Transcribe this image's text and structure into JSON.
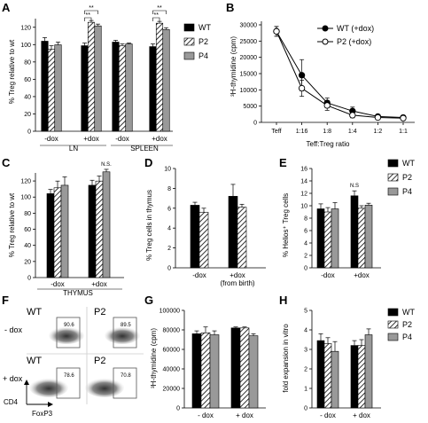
{
  "colors": {
    "wt": "#000000",
    "p2": "#ffffff",
    "p4": "#999999",
    "axis": "#000000",
    "facs": "#555555"
  },
  "legend": {
    "wt": "WT",
    "p2": "P2",
    "p4": "P4",
    "line_wt": "WT (+dox)",
    "line_p2": "P2 (+dox)"
  },
  "panels": {
    "A": {
      "letter": "A",
      "ylabel": "% Treg relative to wt",
      "yticks": [
        "0",
        "20",
        "40",
        "60",
        "80",
        "100",
        "120"
      ],
      "groups": [
        "-dox",
        "+dox",
        "-dox",
        "+dox"
      ],
      "tissues": [
        "LN",
        "SPLEEN"
      ],
      "sig": [
        "**",
        "**",
        "**",
        "**"
      ]
    },
    "B": {
      "letter": "B",
      "ylabel": "³H-thymidine (cpm)",
      "xlabel": "Teff:Treg ratio",
      "xticks": [
        "Teff",
        "1:16",
        "1:8",
        "1:4",
        "1:2",
        "1:1"
      ],
      "yticks": [
        "0",
        "5000",
        "10000",
        "15000",
        "20000",
        "25000",
        "30000"
      ]
    },
    "C": {
      "letter": "C",
      "ylabel": "% Treg relative to wt",
      "yticks": [
        "0",
        "20",
        "40",
        "60",
        "80",
        "100",
        "120"
      ],
      "groups": [
        "-dox",
        "+dox"
      ],
      "tissue": "THYMUS",
      "sig": "N.S."
    },
    "D": {
      "letter": "D",
      "ylabel": "% Treg cells in thymus",
      "yticks": [
        "0",
        "2",
        "4",
        "6",
        "8",
        "10"
      ],
      "groups": [
        "-dox",
        "+dox",
        "(from birth)"
      ]
    },
    "E": {
      "letter": "E",
      "ylabel": "% Helios⁺ Treg cells",
      "yticks": [
        "0",
        "2",
        "4",
        "6",
        "8",
        "10",
        "12",
        "14",
        "16"
      ],
      "groups": [
        "-dox",
        "+dox"
      ],
      "sig": "N.S"
    },
    "F": {
      "letter": "F",
      "row_minus": "- dox",
      "row_plus": "+ dox",
      "pct": [
        "90.6",
        "89.5",
        "78.6",
        "70.8"
      ],
      "plot_labels": [
        "WT",
        "P2",
        "WT",
        "P2"
      ],
      "xaxis": "FoxP3",
      "yaxis": "CD4"
    },
    "G": {
      "letter": "G",
      "ylabel": "³H-thymidine (cpm)",
      "yticks": [
        "0",
        "20000",
        "40000",
        "60000",
        "80000",
        "100000"
      ],
      "groups": [
        "- dox",
        "+ dox"
      ]
    },
    "H": {
      "letter": "H",
      "ylabel": "fold expansion in vitro",
      "yticks": [
        "0",
        "1",
        "2",
        "3",
        "4",
        "5"
      ],
      "groups": [
        "- dox",
        "+ dox"
      ]
    }
  },
  "chart_data": [
    {
      "panel": "A",
      "type": "bar",
      "categories": [
        "LN -dox",
        "LN +dox",
        "SPLEEN -dox",
        "SPLEEN +dox"
      ],
      "ylim": [
        0,
        130
      ],
      "series": [
        {
          "name": "WT",
          "values": [
            100,
            95,
            99,
            94
          ],
          "errors": [
            4,
            3,
            2,
            3
          ]
        },
        {
          "name": "P2",
          "values": [
            91,
            121,
            95,
            120
          ],
          "errors": [
            4,
            2,
            2,
            2
          ]
        },
        {
          "name": "P4",
          "values": [
            96,
            117,
            97,
            113
          ],
          "errors": [
            3,
            2,
            1,
            2
          ]
        }
      ]
    },
    {
      "panel": "B",
      "type": "line",
      "x": [
        "Teff",
        "1:16",
        "1:8",
        "1:4",
        "1:2",
        "1:1"
      ],
      "ylim": [
        0,
        30000
      ],
      "series": [
        {
          "name": "WT (+dox)",
          "values": [
            28000,
            14500,
            6000,
            3500,
            1800,
            1500
          ],
          "errors": [
            1500,
            4800,
            1500,
            1200,
            400,
            300
          ]
        },
        {
          "name": "P2 (+dox)",
          "values": [
            28000,
            10500,
            5200,
            2200,
            1500,
            1300
          ],
          "errors": [
            1500,
            2500,
            1500,
            800,
            300,
            200
          ]
        }
      ]
    },
    {
      "panel": "C",
      "type": "bar",
      "categories": [
        "-dox",
        "+dox"
      ],
      "ylim": [
        0,
        130
      ],
      "series": [
        {
          "name": "WT",
          "values": [
            100,
            110
          ],
          "errors": [
            5,
            6
          ]
        },
        {
          "name": "P2",
          "values": [
            107,
            115
          ],
          "errors": [
            8,
            6
          ]
        },
        {
          "name": "P4",
          "values": [
            110,
            126
          ],
          "errors": [
            10,
            3
          ]
        }
      ]
    },
    {
      "panel": "D",
      "type": "bar",
      "categories": [
        "-dox",
        "+dox (from birth)"
      ],
      "ylim": [
        0,
        10
      ],
      "series": [
        {
          "name": "WT",
          "values": [
            6.3,
            7.2
          ],
          "errors": [
            0.3,
            1.2
          ]
        },
        {
          "name": "P2",
          "values": [
            5.6,
            6.1
          ],
          "errors": [
            0.4,
            0.3
          ]
        }
      ]
    },
    {
      "panel": "E",
      "type": "bar",
      "categories": [
        "-dox",
        "+dox"
      ],
      "ylim": [
        0,
        16
      ],
      "series": [
        {
          "name": "WT",
          "values": [
            9.5,
            11.6
          ],
          "errors": [
            0.8,
            0.8
          ]
        },
        {
          "name": "P2",
          "values": [
            9.0,
            9.6
          ],
          "errors": [
            0.7,
            0.4
          ]
        },
        {
          "name": "P4",
          "values": [
            9.5,
            10.1
          ],
          "errors": [
            1.0,
            0.3
          ]
        }
      ]
    },
    {
      "panel": "G",
      "type": "bar",
      "categories": [
        "- dox",
        "+ dox"
      ],
      "ylim": [
        0,
        100000
      ],
      "series": [
        {
          "name": "WT",
          "values": [
            76000,
            82000
          ],
          "errors": [
            3000,
            1000
          ]
        },
        {
          "name": "P2",
          "values": [
            77000,
            82000
          ],
          "errors": [
            6000,
            1000
          ]
        },
        {
          "name": "P4",
          "values": [
            75000,
            74000
          ],
          "errors": [
            4000,
            2000
          ]
        }
      ]
    },
    {
      "panel": "H",
      "type": "bar",
      "categories": [
        "- dox",
        "+ dox"
      ],
      "ylim": [
        0,
        5
      ],
      "series": [
        {
          "name": "WT",
          "values": [
            3.45,
            3.2
          ],
          "errors": [
            0.35,
            0.25
          ]
        },
        {
          "name": "P2",
          "values": [
            3.3,
            3.2
          ],
          "errors": [
            0.3,
            0.3
          ]
        },
        {
          "name": "P4",
          "values": [
            2.9,
            3.75
          ],
          "errors": [
            0.5,
            0.3
          ]
        }
      ]
    }
  ]
}
